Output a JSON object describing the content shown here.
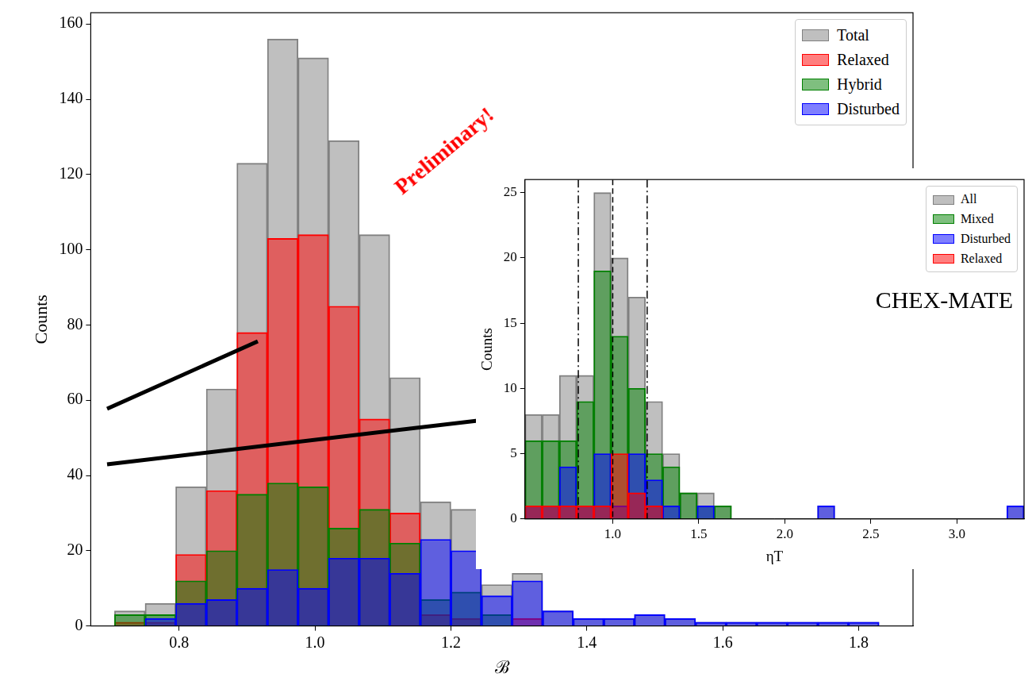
{
  "chart_data": [
    {
      "type": "histogram",
      "x_label": "ℬ",
      "y_label": "Counts",
      "bins": [
        0.705,
        0.75,
        0.795,
        0.84,
        0.885,
        0.93,
        0.975,
        1.02,
        1.065,
        1.11,
        1.155,
        1.2,
        1.245,
        1.29,
        1.335,
        1.38,
        1.425,
        1.47,
        1.515,
        1.56,
        1.605,
        1.65,
        1.695,
        1.74,
        1.785,
        1.83
      ],
      "series": [
        {
          "name": "Total",
          "color": "#808080",
          "values": [
            4,
            6,
            37,
            63,
            123,
            156,
            151,
            129,
            104,
            66,
            33,
            31,
            11,
            14,
            4,
            2,
            2,
            3,
            2,
            1,
            1,
            1,
            1,
            1,
            1
          ]
        },
        {
          "name": "Relaxed",
          "color": "#ff0000",
          "values": [
            1,
            1,
            19,
            36,
            78,
            103,
            104,
            85,
            55,
            30,
            3,
            2,
            0,
            2,
            0,
            0,
            0,
            0,
            0,
            0,
            0,
            0,
            0,
            0,
            0
          ]
        },
        {
          "name": "Hybrid",
          "color": "#008000",
          "values": [
            3,
            3,
            12,
            20,
            35,
            38,
            37,
            26,
            31,
            22,
            7,
            9,
            3,
            0,
            0,
            0,
            0,
            0,
            0,
            0,
            0,
            0,
            0,
            0,
            0
          ]
        },
        {
          "name": "Disturbed",
          "color": "#0000ff",
          "values": [
            0,
            2,
            6,
            7,
            10,
            15,
            10,
            18,
            18,
            14,
            23,
            20,
            8,
            12,
            4,
            2,
            2,
            3,
            2,
            1,
            1,
            1,
            1,
            1,
            1
          ]
        }
      ],
      "xlim": [
        0.67,
        1.88
      ],
      "xticks": [
        0.8,
        {
          "value": 1,
          "label": "1.0"
        },
        1.2,
        1.4,
        1.6,
        1.8
      ],
      "ylim": [
        0,
        163
      ],
      "yticks": [
        0,
        20,
        40,
        60,
        80,
        100,
        120,
        140,
        160
      ],
      "grid": false,
      "legend": "upper right",
      "annotations": [
        {
          "text": "Preliminary!",
          "color": "#ff0000"
        }
      ]
    },
    {
      "type": "histogram",
      "x_label": "ηT",
      "y_label": "Counts",
      "bins": [
        0.49,
        0.59,
        0.69,
        0.79,
        0.89,
        0.99,
        1.09,
        1.19,
        1.29,
        1.39,
        1.49,
        1.59,
        1.69,
        1.79,
        1.89,
        1.99,
        2.09,
        2.19,
        2.29,
        2.39,
        2.49,
        2.59,
        2.69,
        2.79,
        2.89,
        2.99,
        3.09,
        3.19,
        3.29,
        3.39
      ],
      "series": [
        {
          "name": "All",
          "color": "#808080",
          "values": [
            8,
            8,
            11,
            11,
            25,
            20,
            17,
            9,
            5,
            2,
            2,
            1,
            0,
            0,
            0,
            0,
            0,
            1,
            0,
            0,
            0,
            0,
            0,
            0,
            0,
            0,
            0,
            0,
            1
          ]
        },
        {
          "name": "Mixed",
          "color": "#008000",
          "values": [
            6,
            6,
            6,
            9,
            19,
            14,
            10,
            5,
            4,
            2,
            1,
            1,
            0,
            0,
            0,
            0,
            0,
            0,
            0,
            0,
            0,
            0,
            0,
            0,
            0,
            0,
            0,
            0,
            0
          ]
        },
        {
          "name": "Disturbed",
          "color": "#0000ff",
          "values": [
            1,
            1,
            4,
            1,
            5,
            1,
            5,
            3,
            1,
            0,
            1,
            0,
            0,
            0,
            0,
            0,
            0,
            1,
            0,
            0,
            0,
            0,
            0,
            0,
            0,
            0,
            0,
            0,
            1
          ]
        },
        {
          "name": "Relaxed",
          "color": "#ff0000",
          "values": [
            1,
            1,
            1,
            1,
            1,
            5,
            2,
            1,
            0,
            0,
            0,
            0,
            0,
            0,
            0,
            0,
            0,
            0,
            0,
            0,
            0,
            0,
            0,
            0,
            0,
            0,
            0,
            0,
            0
          ]
        }
      ],
      "xlim": [
        0.49,
        3.39
      ],
      "xticks": [
        {
          "value": 1,
          "label": "1.0"
        },
        1.5,
        {
          "value": 2,
          "label": "2.0"
        },
        2.5,
        {
          "value": 3,
          "label": "3.0"
        }
      ],
      "ylim": [
        0,
        26
      ],
      "yticks": [
        0,
        5,
        10,
        15,
        20,
        25
      ],
      "grid": false,
      "legend": "upper right",
      "vlines": [
        {
          "value": 0.8,
          "line_style": "dashdot"
        },
        {
          "value": 1.0,
          "line_style": "dashed"
        },
        {
          "value": 1.2,
          "line_style": "dashdot"
        }
      ],
      "annotations": [
        {
          "text": "CHEX-MATE"
        }
      ]
    }
  ]
}
